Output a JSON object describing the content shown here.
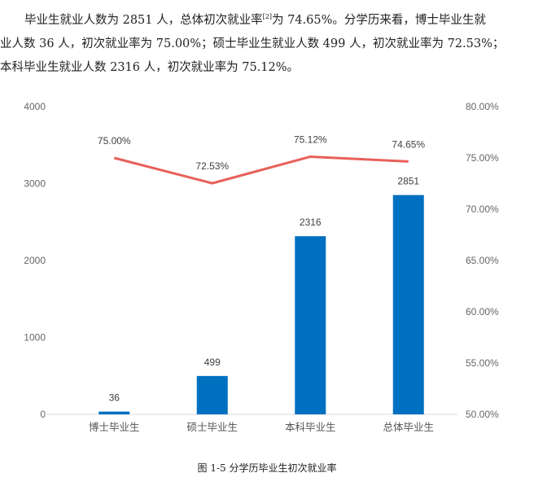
{
  "paragraph": {
    "line1_a": "毕业生就业人数为 2851 人，总体初次就业率",
    "footnote": "[2]",
    "line1_b": "为 74.65%。分学历来看，博士毕业生就",
    "line2": "业人数 36 人，初次就业率为 75.00%；硕士毕业生就业人数 499 人，初次就业率为 72.53%；",
    "line3": "本科毕业生就业人数 2316 人，初次就业率为 75.12%。"
  },
  "caption": "图 1-5 分学历毕业生初次就业率",
  "chart_data": {
    "type": "bar+line",
    "title": "图 1-5 分学历毕业生初次就业率",
    "categories": [
      "博士毕业生",
      "硕士毕业生",
      "本科毕业生",
      "总体毕业生"
    ],
    "series": [
      {
        "name": "就业人数",
        "type": "bar",
        "axis": "left",
        "values": [
          36,
          499,
          2316,
          2851
        ],
        "color": "#0070C0",
        "labels": [
          "36",
          "499",
          "2316",
          "2851"
        ]
      },
      {
        "name": "初次就业率",
        "type": "line",
        "axis": "right",
        "values": [
          75.0,
          72.53,
          75.12,
          74.65
        ],
        "color": "#E8605A",
        "labels": [
          "75.00%",
          "72.53%",
          "75.12%",
          "74.65%"
        ]
      }
    ],
    "left_axis": {
      "ylim": [
        0,
        4000
      ],
      "ticks": [
        "0",
        "1000",
        "2000",
        "3000",
        "4000"
      ]
    },
    "right_axis": {
      "ylim": [
        50,
        80
      ],
      "ticks": [
        "50.00%",
        "55.00%",
        "60.00%",
        "65.00%",
        "70.00%",
        "75.00%",
        "80.00%"
      ]
    },
    "grid": false,
    "legend": "none"
  }
}
